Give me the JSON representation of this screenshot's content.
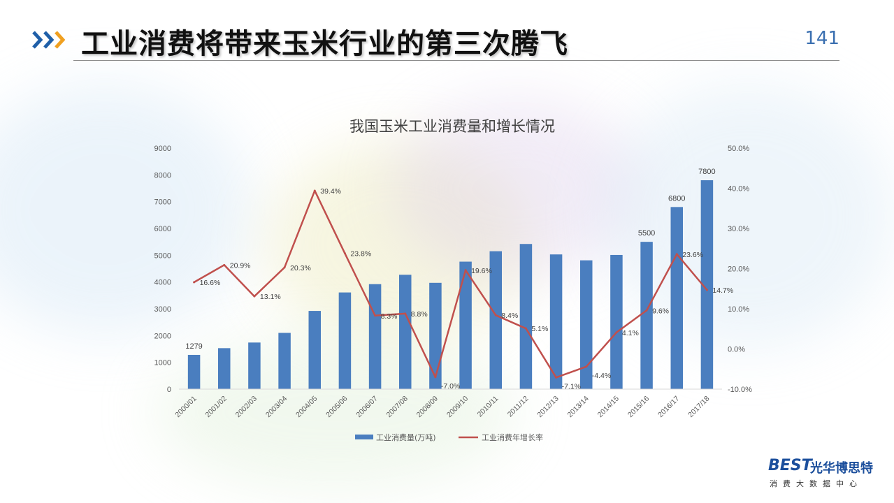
{
  "page": {
    "title": "工业消费将带来玉米行业的第三次腾飞",
    "page_number": "141",
    "accent_color": "#1f5fa8",
    "arrow_colors": [
      "#1f5fa8",
      "#1f5fa8",
      "#f0a020"
    ]
  },
  "logo": {
    "mark": "BEST",
    "name": "光华博思特",
    "subtitle": "消费大数据中心"
  },
  "chart_data": {
    "type": "bar",
    "title": "我国玉米工业消费量和增长情况",
    "categories": [
      "2000/01",
      "2001/02",
      "2002/03",
      "2003/04",
      "2004/05",
      "2005/06",
      "2006/07",
      "2007/08",
      "2008/09",
      "2009/10",
      "2010/11",
      "2011/12",
      "2012/13",
      "2013/14",
      "2014/15",
      "2015/16",
      "2016/17",
      "2017/18"
    ],
    "series": [
      {
        "name": "工业消费量(万吨)",
        "type": "bar",
        "axis": "left",
        "color": "#4a7ebf",
        "values": [
          1279,
          1530,
          1740,
          2100,
          2920,
          3610,
          3920,
          4270,
          3970,
          4760,
          5150,
          5420,
          5030,
          4810,
          5010,
          5500,
          6800,
          7800
        ],
        "labels": [
          "1279",
          "",
          "",
          "",
          "",
          "",
          "",
          "",
          "",
          "",
          "",
          "",
          "",
          "",
          "",
          "5500",
          "6800",
          "7800"
        ]
      },
      {
        "name": "工业消费年增长率",
        "type": "line",
        "axis": "right",
        "color": "#c0504d",
        "values": [
          16.6,
          20.9,
          13.1,
          20.3,
          39.4,
          23.8,
          8.3,
          8.8,
          -7.0,
          19.6,
          8.4,
          5.1,
          -7.1,
          -4.4,
          4.1,
          9.6,
          23.6,
          14.7
        ],
        "labels": [
          "16.6%",
          "20.9%",
          "13.1%",
          "20.3%",
          "39.4%",
          "23.8%",
          "8.3%",
          "8.8%",
          "-7.0%",
          "19.6%",
          "8.4%",
          "5.1%",
          "-7.1%",
          "-4.4%",
          "4.1%",
          "9.6%",
          "23.6%",
          "14.7%"
        ]
      }
    ],
    "ylim_left": [
      0,
      9000
    ],
    "yticks_left": [
      "0",
      "1000",
      "2000",
      "3000",
      "4000",
      "5000",
      "6000",
      "7000",
      "8000",
      "9000"
    ],
    "ylim_right": [
      -10,
      50
    ],
    "yticks_right": [
      "-10.0%",
      "0.0%",
      "10.0%",
      "20.0%",
      "30.0%",
      "40.0%",
      "50.0%"
    ],
    "legend_position": "bottom",
    "grid": false
  }
}
